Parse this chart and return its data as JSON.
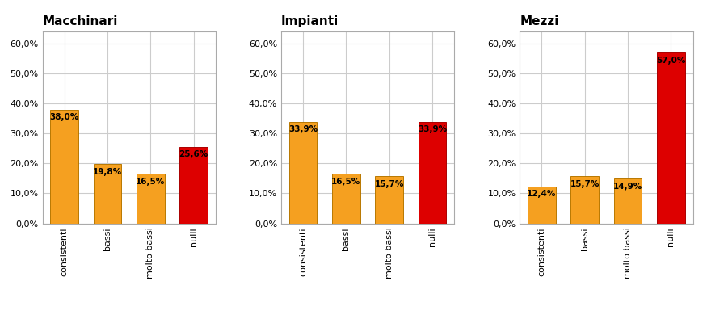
{
  "charts": [
    {
      "title": "Macchinari",
      "categories": [
        "consistenti",
        "bassi",
        "molto bassi",
        "nulli"
      ],
      "values": [
        38.0,
        19.8,
        16.5,
        25.6
      ],
      "colors": [
        "#F5A020",
        "#F5A020",
        "#F5A020",
        "#DD0000"
      ]
    },
    {
      "title": "Impianti",
      "categories": [
        "consistenti",
        "bassi",
        "molto bassi",
        "nulli"
      ],
      "values": [
        33.9,
        16.5,
        15.7,
        33.9
      ],
      "colors": [
        "#F5A020",
        "#F5A020",
        "#F5A020",
        "#DD0000"
      ]
    },
    {
      "title": "Mezzi",
      "categories": [
        "consistenti",
        "bassi",
        "molto bassi",
        "nulli"
      ],
      "values": [
        12.4,
        15.7,
        14.9,
        57.0
      ],
      "colors": [
        "#F5A020",
        "#F5A020",
        "#F5A020",
        "#DD0000"
      ]
    }
  ],
  "ylim": [
    0,
    0.64
  ],
  "yticks": [
    0.0,
    0.1,
    0.2,
    0.3,
    0.4,
    0.5,
    0.6
  ],
  "ytick_labels": [
    "0,0%",
    "10,0%",
    "20,0%",
    "30,0%",
    "40,0%",
    "50,0%",
    "60,0%"
  ],
  "bar_color_orange": "#F5A020",
  "bar_color_red": "#DD0000",
  "title_fontsize": 11,
  "label_fontsize": 7.5,
  "tick_fontsize": 8,
  "background_color": "#FFFFFF",
  "grid_color": "#CCCCCC",
  "box_color": "#AAAAAA"
}
